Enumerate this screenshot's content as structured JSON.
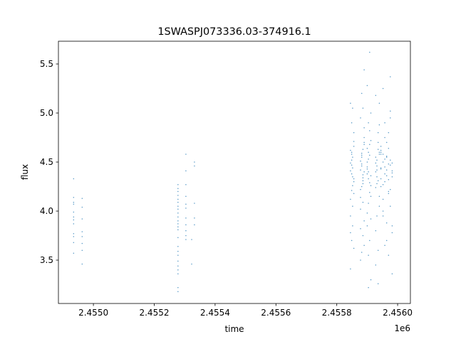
{
  "chart_data": {
    "type": "scatter",
    "title": "1SWASPJ073336.03-374916.1",
    "xlabel": "time",
    "ylabel": "flux",
    "x_offset_label": "1e6",
    "xlim": [
      2454885,
      2456042
    ],
    "ylim": [
      3.058,
      5.732
    ],
    "xticks": [
      2454900,
      2455000,
      2455200,
      2455400,
      2455600,
      2455800,
      2456000
    ],
    "xtick_values": [
      2455000,
      2455200,
      2455400,
      2455600,
      2455800,
      2456000
    ],
    "xtick_labels": [
      "2.4550",
      "2.4552",
      "2.4554",
      "2.4556",
      "2.4558",
      "2.4560"
    ],
    "yticks": [
      3.5,
      4.0,
      4.5,
      5.0,
      5.5
    ],
    "ytick_labels": [
      "3.5",
      "4.0",
      "4.5",
      "5.0",
      "5.5"
    ],
    "grid": false,
    "marker_color": "#1f77b4",
    "points": [
      [
        2454935,
        4.33
      ],
      [
        2454935,
        4.14
      ],
      [
        2454935,
        4.09
      ],
      [
        2454935,
        4.07
      ],
      [
        2454935,
        3.99
      ],
      [
        2454935,
        3.94
      ],
      [
        2454935,
        3.91
      ],
      [
        2454935,
        3.87
      ],
      [
        2454935,
        3.77
      ],
      [
        2454935,
        3.74
      ],
      [
        2454935,
        3.68
      ],
      [
        2454935,
        3.57
      ],
      [
        2454963,
        4.13
      ],
      [
        2454963,
        4.04
      ],
      [
        2454963,
        3.92
      ],
      [
        2454963,
        3.79
      ],
      [
        2454963,
        3.74
      ],
      [
        2454963,
        3.67
      ],
      [
        2454963,
        3.6
      ],
      [
        2454963,
        3.46
      ],
      [
        2455278,
        4.27
      ],
      [
        2455278,
        4.23
      ],
      [
        2455278,
        4.2
      ],
      [
        2455278,
        4.16
      ],
      [
        2455278,
        4.12
      ],
      [
        2455278,
        4.09
      ],
      [
        2455278,
        4.05
      ],
      [
        2455278,
        4.02
      ],
      [
        2455278,
        3.98
      ],
      [
        2455278,
        3.94
      ],
      [
        2455278,
        3.9
      ],
      [
        2455278,
        3.87
      ],
      [
        2455278,
        3.84
      ],
      [
        2455278,
        3.81
      ],
      [
        2455278,
        3.73
      ],
      [
        2455278,
        3.64
      ],
      [
        2455278,
        3.59
      ],
      [
        2455278,
        3.55
      ],
      [
        2455278,
        3.49
      ],
      [
        2455278,
        3.44
      ],
      [
        2455278,
        3.4
      ],
      [
        2455278,
        3.36
      ],
      [
        2455278,
        3.22
      ],
      [
        2455278,
        3.18
      ],
      [
        2455304,
        4.58
      ],
      [
        2455304,
        4.41
      ],
      [
        2455304,
        4.27
      ],
      [
        2455304,
        4.15
      ],
      [
        2455304,
        4.07
      ],
      [
        2455304,
        4.03
      ],
      [
        2455304,
        3.93
      ],
      [
        2455304,
        3.86
      ],
      [
        2455304,
        3.8
      ],
      [
        2455304,
        3.75
      ],
      [
        2455304,
        3.71
      ],
      [
        2455323,
        3.71
      ],
      [
        2455323,
        3.46
      ],
      [
        2455332,
        4.5
      ],
      [
        2455332,
        4.46
      ],
      [
        2455332,
        4.08
      ],
      [
        2455332,
        3.93
      ],
      [
        2455332,
        3.86
      ],
      [
        2455845,
        4.49
      ],
      [
        2455849,
        4.38
      ],
      [
        2455852,
        4.55
      ],
      [
        2455856,
        4.3
      ],
      [
        2455845,
        4.62
      ],
      [
        2455849,
        4.21
      ],
      [
        2455852,
        4.44
      ],
      [
        2455856,
        4.71
      ],
      [
        2455845,
        4.12
      ],
      [
        2455849,
        4.58
      ],
      [
        2455852,
        4.35
      ],
      [
        2455856,
        4.8
      ],
      [
        2455845,
        3.95
      ],
      [
        2455849,
        4.47
      ],
      [
        2455852,
        4.26
      ],
      [
        2455856,
        4.66
      ],
      [
        2455845,
        3.78
      ],
      [
        2455849,
        4.52
      ],
      [
        2455852,
        5.05
      ],
      [
        2455856,
        3.62
      ],
      [
        2455845,
        4.41
      ],
      [
        2455849,
        4.9
      ],
      [
        2455852,
        3.85
      ],
      [
        2455856,
        4.33
      ],
      [
        2455845,
        3.41
      ],
      [
        2455849,
        4.6
      ],
      [
        2455852,
        4.05
      ],
      [
        2455856,
        4.18
      ],
      [
        2455845,
        5.1
      ],
      [
        2455849,
        3.7
      ],
      [
        2455878,
        4.42
      ],
      [
        2455882,
        4.55
      ],
      [
        2455886,
        4.31
      ],
      [
        2455890,
        4.68
      ],
      [
        2455878,
        4.22
      ],
      [
        2455882,
        4.48
      ],
      [
        2455886,
        4.37
      ],
      [
        2455890,
        4.75
      ],
      [
        2455878,
        4.14
      ],
      [
        2455882,
        4.59
      ],
      [
        2455886,
        4.28
      ],
      [
        2455890,
        4.85
      ],
      [
        2455878,
        4.02
      ],
      [
        2455882,
        4.46
      ],
      [
        2455886,
        4.63
      ],
      [
        2455890,
        3.9
      ],
      [
        2455878,
        4.51
      ],
      [
        2455882,
        5.2
      ],
      [
        2455886,
        3.75
      ],
      [
        2455890,
        4.4
      ],
      [
        2455878,
        4.95
      ],
      [
        2455882,
        3.58
      ],
      [
        2455886,
        4.34
      ],
      [
        2455890,
        5.44
      ],
      [
        2455878,
        3.5
      ],
      [
        2455882,
        4.57
      ],
      [
        2455886,
        4.09
      ],
      [
        2455890,
        4.7
      ],
      [
        2455878,
        3.82
      ],
      [
        2455882,
        4.25
      ],
      [
        2455886,
        5.05
      ],
      [
        2455890,
        3.65
      ],
      [
        2455900,
        4.45
      ],
      [
        2455904,
        4.33
      ],
      [
        2455908,
        4.57
      ],
      [
        2455912,
        4.26
      ],
      [
        2455900,
        4.64
      ],
      [
        2455904,
        4.4
      ],
      [
        2455908,
        4.19
      ],
      [
        2455912,
        4.72
      ],
      [
        2455900,
        4.5
      ],
      [
        2455904,
        4.08
      ],
      [
        2455908,
        4.82
      ],
      [
        2455912,
        4.36
      ],
      [
        2455900,
        3.98
      ],
      [
        2455904,
        4.6
      ],
      [
        2455908,
        4.29
      ],
      [
        2455912,
        5.0
      ],
      [
        2455900,
        3.85
      ],
      [
        2455904,
        4.53
      ],
      [
        2455908,
        5.62
      ],
      [
        2455912,
        3.3
      ],
      [
        2455900,
        4.43
      ],
      [
        2455904,
        4.9
      ],
      [
        2455908,
        3.7
      ],
      [
        2455912,
        4.15
      ],
      [
        2455900,
        5.28
      ],
      [
        2455904,
        3.22
      ],
      [
        2455908,
        4.68
      ],
      [
        2455912,
        3.92
      ],
      [
        2455900,
        4.38
      ],
      [
        2455904,
        3.55
      ],
      [
        2455928,
        4.4
      ],
      [
        2455932,
        4.52
      ],
      [
        2455936,
        4.31
      ],
      [
        2455940,
        4.6
      ],
      [
        2455928,
        4.24
      ],
      [
        2455932,
        4.46
      ],
      [
        2455936,
        4.7
      ],
      [
        2455940,
        4.15
      ],
      [
        2455928,
        4.55
      ],
      [
        2455932,
        4.35
      ],
      [
        2455936,
        4.8
      ],
      [
        2455940,
        4.05
      ],
      [
        2455928,
        4.49
      ],
      [
        2455932,
        3.95
      ],
      [
        2455936,
        4.63
      ],
      [
        2455940,
        5.1
      ],
      [
        2455928,
        3.8
      ],
      [
        2455932,
        4.42
      ],
      [
        2455936,
        3.6
      ],
      [
        2455940,
        4.88
      ],
      [
        2455928,
        3.45
      ],
      [
        2455932,
        4.28
      ],
      [
        2455936,
        3.26
      ],
      [
        2455940,
        4.58
      ],
      [
        2455928,
        5.18
      ],
      [
        2455945,
        4.44
      ],
      [
        2455952,
        4.5
      ],
      [
        2455958,
        4.38
      ],
      [
        2455964,
        4.56
      ],
      [
        2455970,
        4.32
      ],
      [
        2455976,
        4.47
      ],
      [
        2455982,
        4.41
      ],
      [
        2455945,
        4.6
      ],
      [
        2455952,
        4.27
      ],
      [
        2455958,
        4.53
      ],
      [
        2455964,
        4.36
      ],
      [
        2455970,
        4.64
      ],
      [
        2455976,
        4.22
      ],
      [
        2455982,
        4.49
      ],
      [
        2455945,
        4.43
      ],
      [
        2455952,
        4.58
      ],
      [
        2455958,
        4.3
      ],
      [
        2455964,
        4.7
      ],
      [
        2455970,
        4.18
      ],
      [
        2455976,
        4.52
      ],
      [
        2455982,
        4.39
      ],
      [
        2455945,
        4.66
      ],
      [
        2455952,
        4.12
      ],
      [
        2455958,
        4.45
      ],
      [
        2455964,
        4.55
      ],
      [
        2455970,
        4.8
      ],
      [
        2455976,
        4.05
      ],
      [
        2455982,
        4.35
      ],
      [
        2455945,
        4.62
      ],
      [
        2455952,
        3.95
      ],
      [
        2455958,
        4.9
      ],
      [
        2455964,
        3.88
      ],
      [
        2455970,
        4.48
      ],
      [
        2455976,
        5.02
      ],
      [
        2455982,
        3.78
      ],
      [
        2455945,
        4.25
      ],
      [
        2455952,
        5.25
      ],
      [
        2455958,
        3.65
      ],
      [
        2455964,
        4.42
      ],
      [
        2455970,
        3.55
      ],
      [
        2455976,
        5.37
      ],
      [
        2455982,
        3.36
      ],
      [
        2455945,
        4.58
      ],
      [
        2455952,
        4.0
      ],
      [
        2455958,
        4.75
      ],
      [
        2455964,
        3.7
      ],
      [
        2455970,
        4.2
      ],
      [
        2455976,
        4.95
      ],
      [
        2455982,
        3.85
      ],
      [
        2455945,
        4.33
      ]
    ]
  }
}
